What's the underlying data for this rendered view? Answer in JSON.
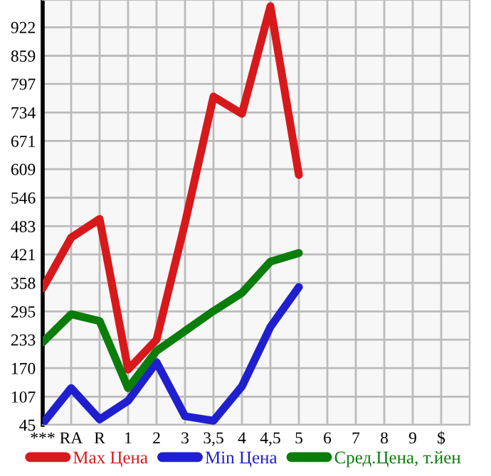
{
  "chart_data": {
    "type": "line",
    "categories": [
      "***",
      "RA",
      "R",
      "1",
      "2",
      "3",
      "3,5",
      "4",
      "4,5",
      "5",
      "6",
      "7",
      "8",
      "9",
      "$"
    ],
    "series": [
      {
        "name": "Max Цена",
        "color": "#d7191c",
        "values": [
          346,
          458,
          499,
          167,
          233,
          490,
          769,
          731,
          968,
          596,
          null,
          null,
          null,
          null,
          null
        ]
      },
      {
        "name": "Min Цена",
        "color": "#1f1fd0",
        "values": [
          48,
          126,
          57,
          98,
          183,
          64,
          54,
          130,
          261,
          349,
          null,
          null,
          null,
          null,
          null
        ]
      },
      {
        "name": "Сред.Цена, т.йен",
        "color": "#0a7d0a",
        "values": [
          227,
          289,
          274,
          126,
          208,
          252,
          296,
          336,
          405,
          424,
          null,
          null,
          null,
          null,
          null
        ]
      }
    ],
    "ylim": [
      45,
      982
    ],
    "yticks": [
      45,
      107,
      170,
      233,
      295,
      358,
      421,
      483,
      546,
      609,
      671,
      734,
      797,
      859,
      922
    ],
    "grid": true,
    "legend": "bottom",
    "marker": "none",
    "line_style": "solid"
  }
}
